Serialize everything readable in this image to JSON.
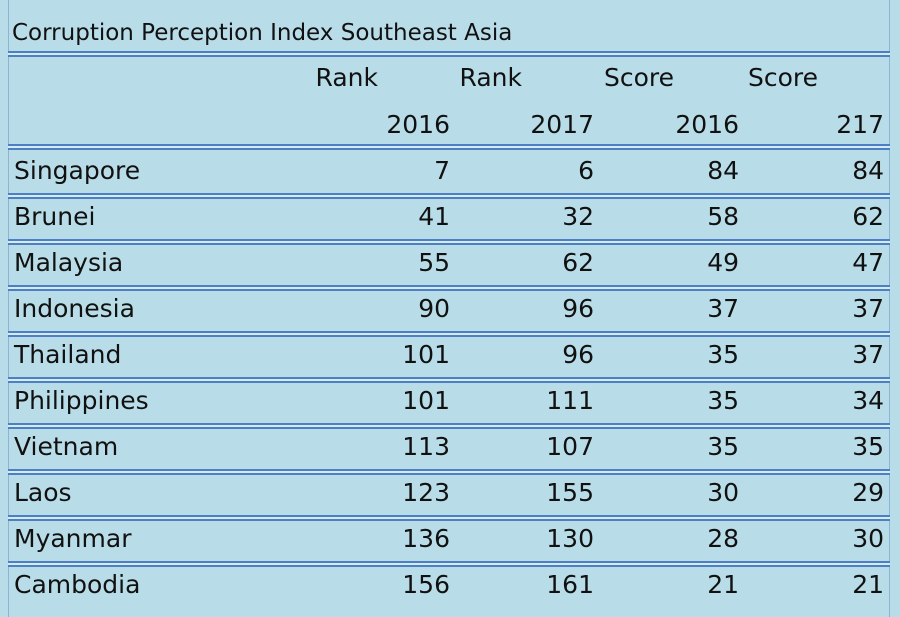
{
  "table": {
    "title": "Corruption Perception Index Southeast Asia",
    "header_top": [
      "Rank",
      "Rank",
      "Score",
      "Score"
    ],
    "header_year": [
      "2016",
      "2017",
      "2016",
      "217"
    ],
    "rows": [
      [
        "Singapore",
        7,
        6,
        84,
        84
      ],
      [
        "Brunei",
        41,
        32,
        58,
        62
      ],
      [
        "Malaysia",
        55,
        62,
        49,
        47
      ],
      [
        "Indonesia",
        90,
        96,
        37,
        37
      ],
      [
        "Thailand",
        101,
        96,
        35,
        37
      ],
      [
        "Philippines",
        101,
        111,
        35,
        34
      ],
      [
        "Vietnam",
        113,
        107,
        35,
        35
      ],
      [
        "Laos",
        123,
        155,
        30,
        29
      ],
      [
        "Myanmar",
        136,
        130,
        28,
        30
      ],
      [
        "Cambodia",
        156,
        161,
        21,
        21
      ]
    ]
  }
}
